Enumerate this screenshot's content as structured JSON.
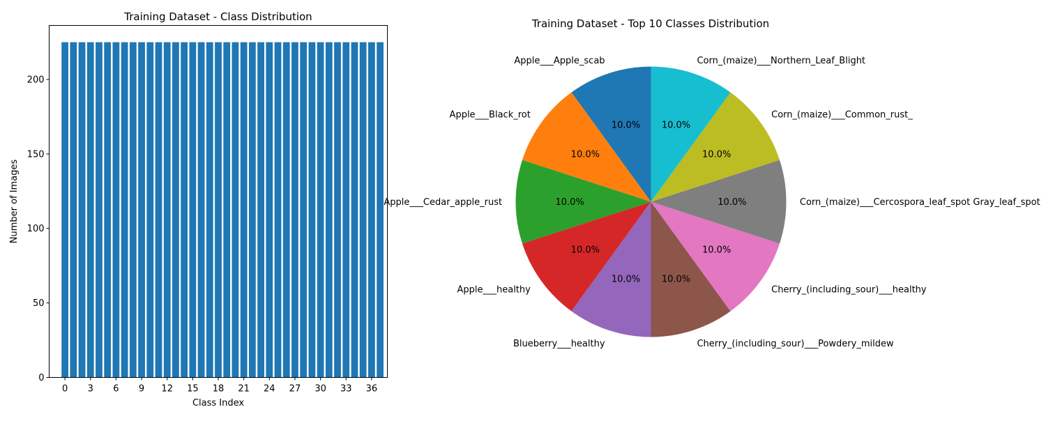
{
  "chart_data": [
    {
      "type": "bar",
      "title": "Training Dataset - Class Distribution",
      "xlabel": "Class Index",
      "ylabel": "Number of Images",
      "x": [
        0,
        1,
        2,
        3,
        4,
        5,
        6,
        7,
        8,
        9,
        10,
        11,
        12,
        13,
        14,
        15,
        16,
        17,
        18,
        19,
        20,
        21,
        22,
        23,
        24,
        25,
        26,
        27,
        28,
        29,
        30,
        31,
        32,
        33,
        34,
        35,
        36,
        37
      ],
      "values": [
        225,
        225,
        225,
        225,
        225,
        225,
        225,
        225,
        225,
        225,
        225,
        225,
        225,
        225,
        225,
        225,
        225,
        225,
        225,
        225,
        225,
        225,
        225,
        225,
        225,
        225,
        225,
        225,
        225,
        225,
        225,
        225,
        225,
        225,
        225,
        225,
        225,
        225
      ],
      "xticks": [
        0,
        3,
        6,
        9,
        12,
        15,
        18,
        21,
        24,
        27,
        30,
        33,
        36
      ],
      "yticks": [
        0,
        50,
        100,
        150,
        200
      ],
      "xlim": [
        -1.85,
        37.85
      ],
      "ylim": [
        0,
        236.25
      ],
      "bar_color": "#1f77b4",
      "grid": false
    },
    {
      "type": "pie",
      "title": "Training Dataset - Top 10 Classes Distribution",
      "labels": [
        "Apple___Apple_scab",
        "Apple___Black_rot",
        "Apple___Cedar_apple_rust",
        "Apple___healthy",
        "Blueberry___healthy",
        "Cherry_(including_sour)___Powdery_mildew",
        "Cherry_(including_sour)___healthy",
        "Corn_(maize)___Cercospora_leaf_spot Gray_leaf_spot",
        "Corn_(maize)___Common_rust_",
        "Corn_(maize)___Northern_Leaf_Blight"
      ],
      "values": [
        225,
        225,
        225,
        225,
        225,
        225,
        225,
        225,
        225,
        225
      ],
      "percent_labels": [
        "10.0%",
        "10.0%",
        "10.0%",
        "10.0%",
        "10.0%",
        "10.0%",
        "10.0%",
        "10.0%",
        "10.0%",
        "10.0%"
      ],
      "colors": [
        "#1f77b4",
        "#ff7f0e",
        "#2ca02c",
        "#d62728",
        "#9467bd",
        "#8c564b",
        "#e377c2",
        "#7f7f7f",
        "#bcbd22",
        "#17becf"
      ],
      "start_angle": 90,
      "direction": "counterclockwise"
    }
  ]
}
